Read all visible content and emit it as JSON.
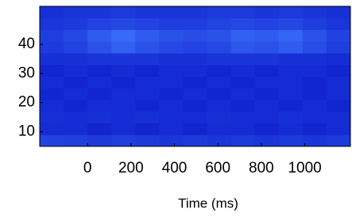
{
  "chart_data": {
    "type": "heatmap",
    "xlabel": "Time (ms)",
    "x": [
      -165,
      -55,
      55,
      165,
      275,
      385,
      495,
      605,
      715,
      825,
      935,
      1045,
      1155
    ],
    "y": [
      7,
      11,
      15,
      19,
      23,
      27,
      31,
      35,
      39,
      43,
      47,
      51
    ],
    "z": [
      [
        0.45,
        0.4,
        0.35,
        0.4,
        0.35,
        0.3,
        0.35,
        0.3,
        0.35,
        0.3,
        0.35,
        0.3,
        0.35
      ],
      [
        0.2,
        0.2,
        0.15,
        0.2,
        0.15,
        0.2,
        0.15,
        0.2,
        0.2,
        0.15,
        0.2,
        0.15,
        0.2
      ],
      [
        0.25,
        0.2,
        0.25,
        0.2,
        0.25,
        0.2,
        0.2,
        0.25,
        0.2,
        0.2,
        0.25,
        0.2,
        0.2
      ],
      [
        0.2,
        0.15,
        0.2,
        0.2,
        0.15,
        0.2,
        0.15,
        0.2,
        0.15,
        0.2,
        0.15,
        0.2,
        0.15
      ],
      [
        0.15,
        0.2,
        0.15,
        0.2,
        0.2,
        0.15,
        0.2,
        0.15,
        0.2,
        0.15,
        0.2,
        0.15,
        0.2
      ],
      [
        0.2,
        0.15,
        0.2,
        0.15,
        0.2,
        0.2,
        0.15,
        0.2,
        0.15,
        0.2,
        0.2,
        0.15,
        0.2
      ],
      [
        0.15,
        0.2,
        0.15,
        0.2,
        0.15,
        0.2,
        0.2,
        0.15,
        0.2,
        0.15,
        0.2,
        0.2,
        0.15
      ],
      [
        0.25,
        0.25,
        0.3,
        0.3,
        0.3,
        0.25,
        0.25,
        0.3,
        0.3,
        0.3,
        0.25,
        0.25,
        0.2
      ],
      [
        0.35,
        0.45,
        0.6,
        0.75,
        0.6,
        0.5,
        0.45,
        0.5,
        0.65,
        0.6,
        0.7,
        0.55,
        0.4
      ],
      [
        0.4,
        0.5,
        0.7,
        0.85,
        0.7,
        0.6,
        0.55,
        0.6,
        0.75,
        0.7,
        0.8,
        0.6,
        0.45
      ],
      [
        0.3,
        0.35,
        0.45,
        0.5,
        0.45,
        0.4,
        0.4,
        0.45,
        0.5,
        0.45,
        0.5,
        0.4,
        0.3
      ],
      [
        0.25,
        0.3,
        0.3,
        0.35,
        0.3,
        0.3,
        0.3,
        0.35,
        0.35,
        0.3,
        0.35,
        0.3,
        0.25
      ]
    ],
    "colormap": [
      "#0a18c8",
      "#3f78ff"
    ],
    "xlim": [
      -220,
      1210
    ],
    "ylim": [
      5,
      53
    ],
    "xticks": [
      0,
      200,
      400,
      600,
      800,
      1000
    ],
    "yticks": [
      10,
      20,
      30,
      40
    ]
  }
}
